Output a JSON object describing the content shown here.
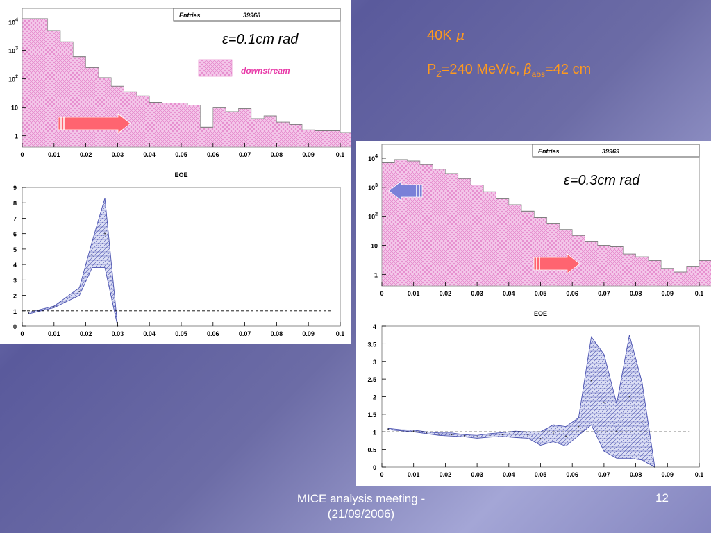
{
  "header": {
    "line1_a": "40K ",
    "line1_mu": "μ",
    "line2_p": "P",
    "line2_z": "Z",
    "line2_rest": "=240 MeV/c, ",
    "line2_beta": "β",
    "line2_abs": "abs",
    "line2_end": "=42 cm"
  },
  "labels": {
    "eps_left": "ε=0.1cm rad",
    "eps_right": "ε=0.3cm rad"
  },
  "footer": {
    "meeting_line1": "MICE analysis meeting -",
    "meeting_line2": "(21/09/2006)",
    "page_number": "12"
  },
  "colors": {
    "header_text": "#ff9a1e",
    "hist_fill": "#f4c8ea",
    "hist_hatch": "#e070c0",
    "ratio_fill": "#c8cbee",
    "ratio_line": "#4a52b0",
    "arrow_red": "#ff6470",
    "arrow_blue": "#7a80d8",
    "downstream_text": "#e83aa8"
  },
  "chart_data": [
    {
      "type": "histogram",
      "xlabel": "EOE",
      "ylabel": "",
      "xlim": [
        0,
        0.1
      ],
      "ylim": [
        0.4,
        30000
      ],
      "log_y": true,
      "x_ticks": [
        "0",
        "0.01",
        "0.02",
        "0.03",
        "0.04",
        "0.05",
        "0.06",
        "0.07",
        "0.08",
        "0.09",
        "0.1"
      ],
      "y_ticks": [
        {
          "v": 10000,
          "b": "10",
          "e": "4"
        },
        {
          "v": 1000,
          "b": "10",
          "e": "3"
        },
        {
          "v": 100,
          "b": "10",
          "e": "2"
        },
        {
          "v": 10,
          "b": "10",
          "e": ""
        },
        {
          "v": 1,
          "b": "1",
          "e": ""
        }
      ],
      "stats_box": {
        "label": "Entries",
        "value": "39968"
      },
      "legend": {
        "label": "downstream"
      },
      "bin_width": 0.004,
      "values": [
        13000,
        13000,
        5000,
        2000,
        600,
        250,
        110,
        55,
        35,
        25,
        15,
        14,
        14,
        12,
        2,
        10,
        7,
        9,
        4,
        5,
        3,
        2.5,
        1.6,
        1.5,
        1.5,
        1.3
      ]
    },
    {
      "type": "area",
      "xlabel": "",
      "ylabel": "",
      "xlim": [
        0,
        0.1
      ],
      "ylim": [
        0,
        9
      ],
      "x_ticks": [
        "0",
        "0.01",
        "0.02",
        "0.03",
        "0.04",
        "0.05",
        "0.06",
        "0.07",
        "0.08",
        "0.09",
        "0.1"
      ],
      "y_ticks": [
        "0",
        "1",
        "2",
        "3",
        "4",
        "5",
        "6",
        "7",
        "8",
        "9"
      ],
      "reference_line": 1,
      "x": [
        0.002,
        0.01,
        0.018,
        0.022,
        0.026,
        0.03
      ],
      "upper": [
        0.9,
        1.3,
        2.5,
        5.5,
        8.3,
        0
      ],
      "lower": [
        0.8,
        1.2,
        2.0,
        3.8,
        3.8,
        0
      ],
      "central": [
        0.85,
        1.25,
        2.25,
        4.6,
        6.0,
        0
      ]
    },
    {
      "type": "histogram",
      "xlabel": "EOE",
      "ylabel": "",
      "xlim": [
        0,
        0.1
      ],
      "ylim": [
        0.4,
        30000
      ],
      "log_y": true,
      "x_ticks": [
        "0",
        "0.01",
        "0.02",
        "0.03",
        "0.04",
        "0.05",
        "0.06",
        "0.07",
        "0.08",
        "0.09",
        "0.1"
      ],
      "y_ticks": [
        {
          "v": 10000,
          "b": "10",
          "e": "4"
        },
        {
          "v": 1000,
          "b": "10",
          "e": "3"
        },
        {
          "v": 100,
          "b": "10",
          "e": "2"
        },
        {
          "v": 10,
          "b": "10",
          "e": ""
        },
        {
          "v": 1,
          "b": "1",
          "e": ""
        }
      ],
      "stats_box": {
        "label": "Entries",
        "value": "39969"
      },
      "bin_width": 0.004,
      "values": [
        7000,
        9000,
        8000,
        6000,
        4200,
        3000,
        2000,
        1200,
        700,
        400,
        250,
        150,
        90,
        55,
        35,
        22,
        14,
        10,
        9,
        5,
        4,
        3,
        1.6,
        1.2,
        1.9,
        3,
        2.2,
        2.2,
        2.2,
        1.2
      ]
    },
    {
      "type": "area",
      "xlabel": "",
      "ylabel": "",
      "xlim": [
        0,
        0.1
      ],
      "ylim": [
        0,
        4
      ],
      "x_ticks": [
        "0",
        "0.01",
        "0.02",
        "0.03",
        "0.04",
        "0.05",
        "0.06",
        "0.07",
        "0.08",
        "0.09",
        "0.1"
      ],
      "y_ticks": [
        "0",
        "0.5",
        "1",
        "1.5",
        "2",
        "2.5",
        "3",
        "3.5",
        "4"
      ],
      "reference_line": 1,
      "x": [
        0.002,
        0.006,
        0.01,
        0.014,
        0.018,
        0.022,
        0.026,
        0.03,
        0.034,
        0.038,
        0.042,
        0.046,
        0.05,
        0.054,
        0.058,
        0.062,
        0.066,
        0.07,
        0.074,
        0.078,
        0.082,
        0.086
      ],
      "upper": [
        1.1,
        1.06,
        1.05,
        1.0,
        0.97,
        0.97,
        0.92,
        0.9,
        0.95,
        0.98,
        1.02,
        1.0,
        1.0,
        1.2,
        1.15,
        1.4,
        3.7,
        3.2,
        1.8,
        3.75,
        2.4,
        0
      ],
      "lower": [
        1.06,
        1.03,
        1.0,
        0.95,
        0.9,
        0.88,
        0.86,
        0.82,
        0.85,
        0.87,
        0.84,
        0.82,
        0.62,
        0.72,
        0.6,
        0.9,
        1.2,
        0.45,
        0.25,
        0.25,
        0.2,
        0
      ],
      "central": [
        1.08,
        1.05,
        1.02,
        0.97,
        0.93,
        0.92,
        0.89,
        0.86,
        0.9,
        0.92,
        0.93,
        0.91,
        0.81,
        0.96,
        0.88,
        1.15,
        2.45,
        1.83,
        1.02,
        2.0,
        1.3,
        0
      ]
    }
  ]
}
